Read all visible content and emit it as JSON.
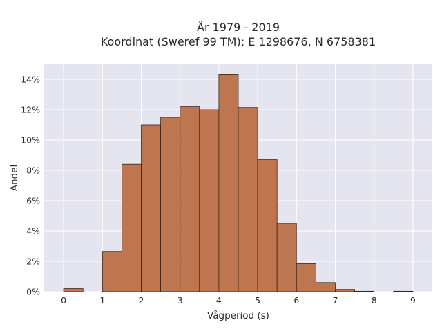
{
  "chart_data": {
    "type": "bar",
    "title_line1": "År 1979 - 2019",
    "title_line2": "Koordinat (Sweref 99 TM): E 1298676, N 6758381",
    "xlabel": "Vågperiod (s)",
    "ylabel": "Andel",
    "bin_width": 0.5,
    "bins": [
      {
        "start": 0.0,
        "value": 0.2
      },
      {
        "start": 0.5,
        "value": 0.0
      },
      {
        "start": 1.0,
        "value": 2.65
      },
      {
        "start": 1.5,
        "value": 8.4
      },
      {
        "start": 2.0,
        "value": 11.0
      },
      {
        "start": 2.5,
        "value": 11.5
      },
      {
        "start": 3.0,
        "value": 12.2
      },
      {
        "start": 3.5,
        "value": 12.0
      },
      {
        "start": 4.0,
        "value": 14.3
      },
      {
        "start": 4.5,
        "value": 12.15
      },
      {
        "start": 5.0,
        "value": 8.7
      },
      {
        "start": 5.5,
        "value": 4.5
      },
      {
        "start": 6.0,
        "value": 1.85
      },
      {
        "start": 6.5,
        "value": 0.6
      },
      {
        "start": 7.0,
        "value": 0.15
      },
      {
        "start": 7.5,
        "value": 0.03
      },
      {
        "start": 8.0,
        "value": 0.0
      },
      {
        "start": 8.5,
        "value": 0.03
      }
    ],
    "x_ticks": [
      0,
      1,
      2,
      3,
      4,
      5,
      6,
      7,
      8,
      9
    ],
    "y_ticks": [
      0,
      2,
      4,
      6,
      8,
      10,
      12,
      14
    ],
    "y_tick_suffix": "%",
    "xlim": [
      -0.5,
      9.5
    ],
    "ylim": [
      0,
      15
    ],
    "grid": true,
    "colors": {
      "bar_fill": "#bc7048",
      "bar_stroke": "#3a2416",
      "plot_bg": "#e5e5ef",
      "grid": "#ffffff"
    }
  }
}
